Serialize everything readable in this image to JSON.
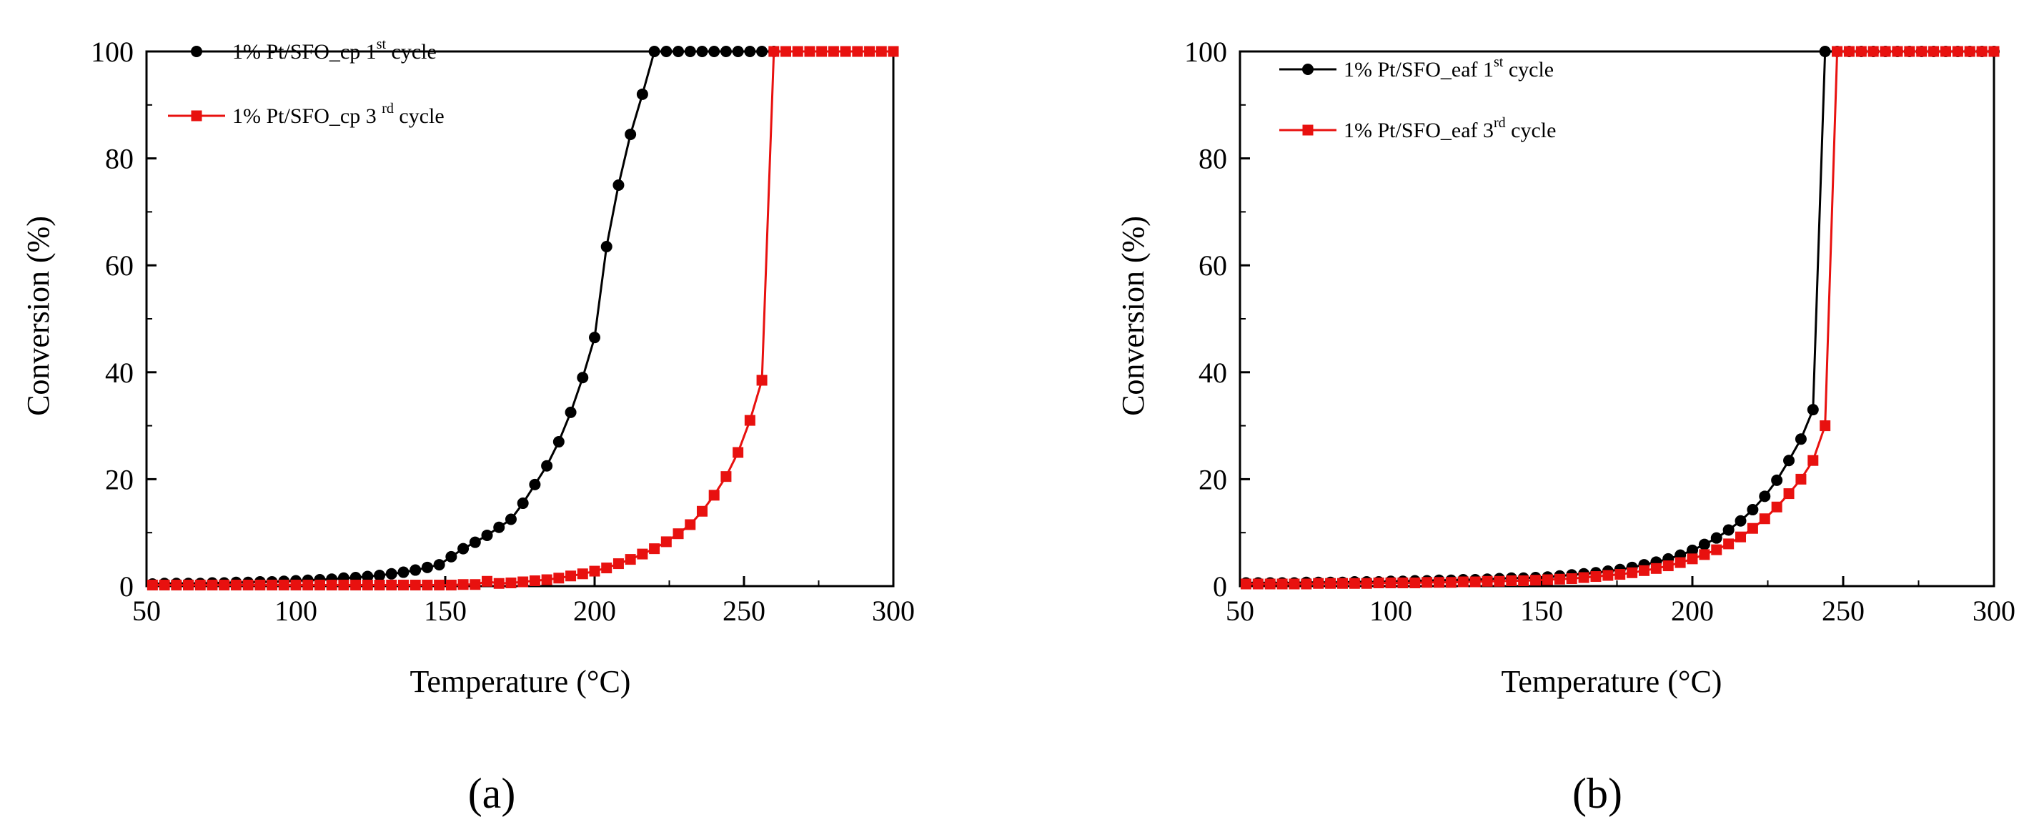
{
  "colors": {
    "series1": "#000000",
    "series2": "#e8110f",
    "axis": "#000000"
  },
  "chart_data": [
    {
      "type": "line",
      "panel_label": "(a)",
      "xlabel": "Temperature (°C)",
      "ylabel": "Conversion (%)",
      "xlim": [
        50,
        300
      ],
      "ylim": [
        0,
        100
      ],
      "xticks": [
        50,
        100,
        150,
        200,
        250,
        300
      ],
      "yticks": [
        0,
        20,
        40,
        60,
        80,
        100
      ],
      "grid": false,
      "legend_position": "top-left",
      "series": [
        {
          "name": "1% Pt/SFO_cp 1st cycle",
          "name_main": "1% Pt/SFO_cp 1",
          "name_sup": "st",
          "name_tail": " cycle",
          "marker": "circle",
          "color": "#000000",
          "x": [
            52,
            56,
            60,
            64,
            68,
            72,
            76,
            80,
            84,
            88,
            92,
            96,
            100,
            104,
            108,
            112,
            116,
            120,
            124,
            128,
            132,
            136,
            140,
            144,
            148,
            152,
            156,
            160,
            164,
            168,
            172,
            176,
            180,
            184,
            188,
            192,
            196,
            200,
            204,
            208,
            212,
            216,
            220,
            224,
            228,
            232,
            236,
            240,
            244,
            248,
            252,
            256,
            260
          ],
          "y": [
            0.4,
            0.5,
            0.5,
            0.5,
            0.5,
            0.6,
            0.6,
            0.7,
            0.7,
            0.8,
            0.8,
            0.9,
            1.0,
            1.1,
            1.2,
            1.3,
            1.5,
            1.6,
            1.8,
            2.0,
            2.3,
            2.6,
            3.0,
            3.5,
            4.0,
            5.5,
            7.0,
            8.2,
            9.5,
            11.0,
            12.5,
            15.5,
            19.0,
            22.5,
            27.0,
            32.5,
            39.0,
            46.5,
            63.5,
            75.0,
            84.5,
            92.0,
            100,
            100,
            100,
            100,
            100,
            100,
            100,
            100,
            100,
            100,
            100
          ]
        },
        {
          "name": "1% Pt/SFO_cp 3rd cycle",
          "name_main": "1% Pt/SFO_cp 3 ",
          "name_sup": "rd",
          "name_tail": " cycle",
          "marker": "square",
          "color": "#e8110f",
          "x": [
            52,
            56,
            60,
            64,
            68,
            72,
            76,
            80,
            84,
            88,
            92,
            96,
            100,
            104,
            108,
            112,
            116,
            120,
            124,
            128,
            132,
            136,
            140,
            144,
            148,
            152,
            156,
            160,
            164,
            168,
            172,
            176,
            180,
            184,
            188,
            192,
            196,
            200,
            204,
            208,
            212,
            216,
            220,
            224,
            228,
            232,
            236,
            240,
            244,
            248,
            252,
            256,
            260,
            264,
            268,
            272,
            276,
            280,
            284,
            288,
            292,
            296,
            300
          ],
          "y": [
            0.2,
            0.2,
            0.2,
            0.2,
            0.2,
            0.2,
            0.2,
            0.2,
            0.2,
            0.2,
            0.2,
            0.2,
            0.2,
            0.2,
            0.2,
            0.2,
            0.2,
            0.2,
            0.2,
            0.2,
            0.2,
            0.2,
            0.2,
            0.2,
            0.2,
            0.2,
            0.3,
            0.3,
            0.9,
            0.5,
            0.6,
            0.8,
            1.0,
            1.2,
            1.5,
            1.9,
            2.3,
            2.8,
            3.4,
            4.2,
            5.0,
            6.0,
            7.0,
            8.3,
            9.8,
            11.5,
            14.0,
            17.0,
            20.5,
            25.0,
            31.0,
            38.5,
            100,
            100,
            100,
            100,
            100,
            100,
            100,
            100,
            100,
            100,
            100
          ]
        }
      ]
    },
    {
      "type": "line",
      "panel_label": "(b)",
      "xlabel": "Temperature (°C)",
      "ylabel": "Conversion (%)",
      "xlim": [
        50,
        300
      ],
      "ylim": [
        0,
        100
      ],
      "xticks": [
        50,
        100,
        150,
        200,
        250,
        300
      ],
      "yticks": [
        0,
        20,
        40,
        60,
        80,
        100
      ],
      "grid": false,
      "legend_position": "top-left",
      "series": [
        {
          "name": "1% Pt/SFO_eaf 1st cycle",
          "name_main": "1% Pt/SFO_eaf 1",
          "name_sup": "st",
          "name_tail": " cycle",
          "marker": "circle",
          "color": "#000000",
          "x": [
            52,
            56,
            60,
            64,
            68,
            72,
            76,
            80,
            84,
            88,
            92,
            96,
            100,
            104,
            108,
            112,
            116,
            120,
            124,
            128,
            132,
            136,
            140,
            144,
            148,
            152,
            156,
            160,
            164,
            168,
            172,
            176,
            180,
            184,
            188,
            192,
            196,
            200,
            204,
            208,
            212,
            216,
            220,
            224,
            228,
            232,
            236,
            240,
            244,
            248,
            252,
            256,
            260,
            264,
            268,
            272,
            276,
            280,
            284,
            288,
            292,
            296,
            300
          ],
          "y": [
            0.6,
            0.6,
            0.6,
            0.6,
            0.6,
            0.7,
            0.7,
            0.7,
            0.7,
            0.8,
            0.8,
            0.8,
            0.9,
            0.9,
            1.0,
            1.0,
            1.1,
            1.1,
            1.2,
            1.2,
            1.3,
            1.4,
            1.5,
            1.5,
            1.6,
            1.7,
            1.9,
            2.1,
            2.3,
            2.5,
            2.8,
            3.1,
            3.5,
            4.0,
            4.5,
            5.1,
            5.8,
            6.7,
            7.8,
            9.0,
            10.5,
            12.2,
            14.3,
            16.8,
            19.8,
            23.5,
            27.5,
            33.0,
            100,
            100,
            100,
            100,
            100,
            100,
            100,
            100,
            100,
            100,
            100,
            100,
            100,
            100,
            100
          ]
        },
        {
          "name": "1% Pt/SFO_eaf 3rd cycle",
          "name_main": "1% Pt/SFO_eaf 3",
          "name_sup": "rd",
          "name_tail": "  cycle",
          "marker": "square",
          "color": "#e8110f",
          "x": [
            52,
            56,
            60,
            64,
            68,
            72,
            76,
            80,
            84,
            88,
            92,
            96,
            100,
            104,
            108,
            112,
            116,
            120,
            124,
            128,
            132,
            136,
            140,
            144,
            148,
            152,
            156,
            160,
            164,
            168,
            172,
            176,
            180,
            184,
            188,
            192,
            196,
            200,
            204,
            208,
            212,
            216,
            220,
            224,
            228,
            232,
            236,
            240,
            244,
            248,
            252,
            256,
            260,
            264,
            268,
            272,
            276,
            280,
            284,
            288,
            292,
            296,
            300
          ],
          "y": [
            0.4,
            0.4,
            0.4,
            0.4,
            0.4,
            0.4,
            0.5,
            0.5,
            0.5,
            0.5,
            0.5,
            0.6,
            0.6,
            0.6,
            0.6,
            0.7,
            0.7,
            0.7,
            0.8,
            0.8,
            0.9,
            0.9,
            1.0,
            1.0,
            1.1,
            1.2,
            1.3,
            1.4,
            1.6,
            1.8,
            2.0,
            2.2,
            2.5,
            2.9,
            3.3,
            3.8,
            4.4,
            5.1,
            5.9,
            6.8,
            7.9,
            9.2,
            10.8,
            12.6,
            14.8,
            17.3,
            20.0,
            23.5,
            30.0,
            100,
            100,
            100,
            100,
            100,
            100,
            100,
            100,
            100,
            100,
            100,
            100,
            100,
            100
          ]
        }
      ]
    }
  ]
}
